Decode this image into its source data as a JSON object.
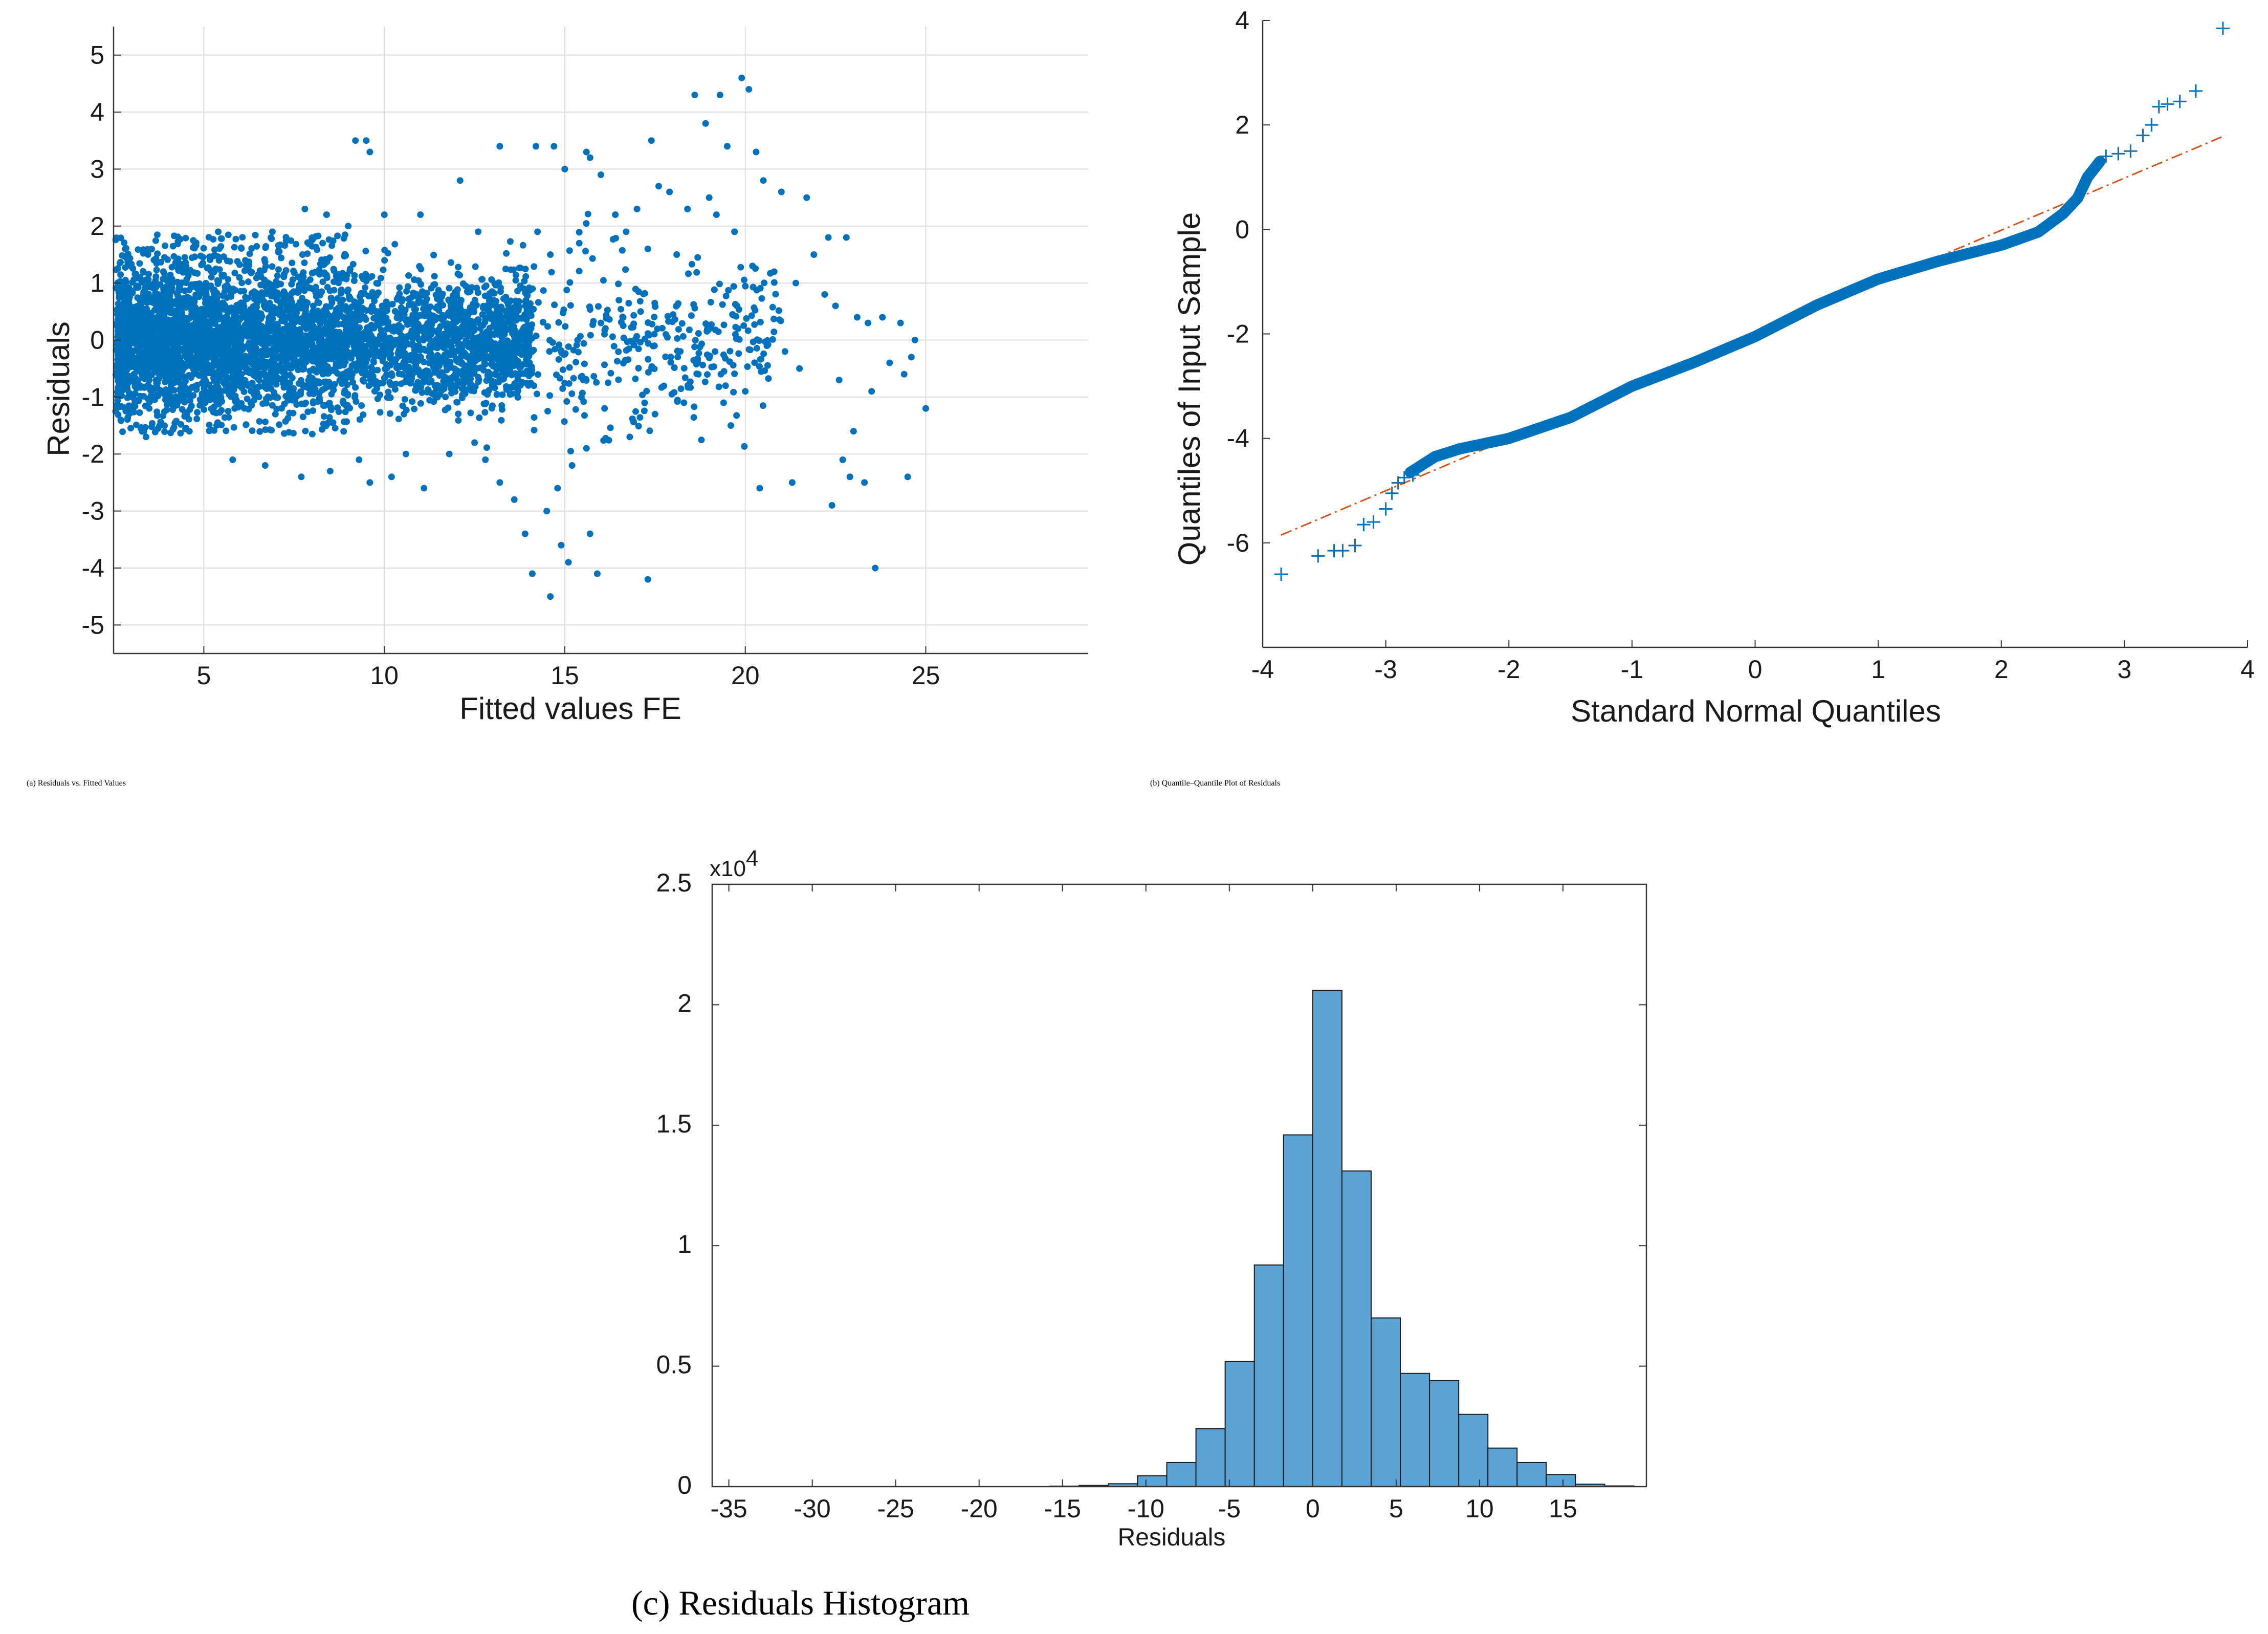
{
  "captions": {
    "a": {
      "label": "a",
      "text": "Residuals vs. Fitted Values"
    },
    "b": {
      "label": "b",
      "text": "Quantile–Quantile Plot of Residuals"
    },
    "c": {
      "text": "(c) Residuals Histogram"
    }
  },
  "chart_data": [
    {
      "id": "a",
      "type": "scatter",
      "title": "",
      "xlabel": "Fitted values FE",
      "ylabel": "Residuals",
      "xlim": [
        2.5,
        29.5
      ],
      "ylim": [
        -5.5,
        5.5
      ],
      "xticks": [
        5,
        10,
        15,
        20,
        25
      ],
      "yticks": [
        5,
        4,
        3,
        2,
        1,
        0,
        -1,
        -2,
        -3,
        -4,
        -5
      ],
      "xtick_labels": [
        "5",
        "10",
        "15",
        "20",
        "25"
      ],
      "ytick_labels": [
        "5",
        "4",
        "3",
        "2",
        "1",
        "0",
        "-1",
        "-2",
        "-3",
        "-4",
        "-5"
      ],
      "grid": true,
      "color": "#0072BD",
      "points": [
        [
          9.2,
          3.5
        ],
        [
          9.5,
          3.5
        ],
        [
          9.6,
          3.3
        ],
        [
          13.2,
          3.4
        ],
        [
          14.2,
          3.4
        ],
        [
          14.7,
          3.4
        ],
        [
          15.6,
          3.3
        ],
        [
          15.7,
          3.2
        ],
        [
          18.6,
          4.3
        ],
        [
          18.9,
          3.8
        ],
        [
          19.3,
          4.3
        ],
        [
          19.5,
          3.4
        ],
        [
          19.9,
          4.6
        ],
        [
          20.1,
          4.4
        ],
        [
          20.3,
          3.3
        ],
        [
          17.4,
          3.5
        ],
        [
          15.0,
          3.0
        ],
        [
          16.0,
          2.9
        ],
        [
          12.1,
          2.8
        ],
        [
          17.6,
          2.7
        ],
        [
          19.0,
          2.5
        ],
        [
          20.5,
          2.8
        ],
        [
          21.0,
          2.6
        ],
        [
          21.7,
          2.5
        ],
        [
          17.9,
          2.6
        ],
        [
          18.4,
          2.3
        ],
        [
          19.2,
          2.2
        ],
        [
          16.4,
          2.2
        ],
        [
          17.0,
          2.3
        ],
        [
          22.3,
          1.8
        ],
        [
          22.8,
          1.8
        ],
        [
          21.9,
          1.5
        ],
        [
          19.7,
          1.9
        ],
        [
          20.2,
          1.3
        ],
        [
          18.1,
          1.5
        ],
        [
          17.3,
          1.6
        ],
        [
          16.7,
          1.9
        ],
        [
          15.4,
          1.7
        ],
        [
          14.6,
          1.5
        ],
        [
          20.8,
          1.2
        ],
        [
          21.4,
          1.0
        ],
        [
          23.1,
          0.4
        ],
        [
          22.2,
          0.8
        ],
        [
          22.5,
          0.6
        ],
        [
          23.4,
          0.3
        ],
        [
          23.8,
          0.4
        ],
        [
          24.3,
          0.3
        ],
        [
          24.7,
          0.0
        ],
        [
          24.6,
          -0.3
        ],
        [
          24.4,
          -0.6
        ],
        [
          24.0,
          -0.4
        ],
        [
          25.0,
          -1.2
        ],
        [
          23.5,
          -0.9
        ],
        [
          22.6,
          -0.7
        ],
        [
          21.1,
          -0.2
        ],
        [
          21.5,
          -0.5
        ],
        [
          20.6,
          -0.1
        ],
        [
          19.8,
          0.2
        ],
        [
          20.0,
          -0.9
        ],
        [
          19.4,
          -1.1
        ],
        [
          18.7,
          -0.6
        ],
        [
          18.2,
          -0.2
        ],
        [
          17.8,
          0.1
        ],
        [
          17.1,
          0.5
        ],
        [
          16.5,
          0.7
        ],
        [
          16.0,
          0.3
        ],
        [
          23.0,
          -1.6
        ],
        [
          22.7,
          -2.1
        ],
        [
          22.4,
          -2.9
        ],
        [
          23.3,
          -2.5
        ],
        [
          22.9,
          -2.4
        ],
        [
          24.5,
          -2.4
        ],
        [
          21.3,
          -2.5
        ],
        [
          20.4,
          -2.6
        ],
        [
          19.6,
          -1.5
        ],
        [
          18.3,
          -1.1
        ],
        [
          17.5,
          -1.3
        ],
        [
          16.8,
          -1.7
        ],
        [
          16.1,
          -1.2
        ],
        [
          15.6,
          -1.9
        ],
        [
          15.2,
          -2.2
        ],
        [
          14.8,
          -2.6
        ],
        [
          14.5,
          -3.0
        ],
        [
          14.9,
          -3.6
        ],
        [
          15.1,
          -3.9
        ],
        [
          14.6,
          -4.5
        ],
        [
          13.9,
          -3.4
        ],
        [
          14.1,
          -4.1
        ],
        [
          15.7,
          -3.4
        ],
        [
          15.9,
          -4.1
        ],
        [
          17.3,
          -4.2
        ],
        [
          13.6,
          -2.8
        ],
        [
          13.2,
          -2.5
        ],
        [
          12.8,
          -2.1
        ],
        [
          12.5,
          -1.8
        ],
        [
          11.1,
          -2.6
        ],
        [
          10.2,
          -2.4
        ],
        [
          9.6,
          -2.5
        ],
        [
          23.6,
          -4.0
        ],
        [
          7.8,
          2.3
        ],
        [
          8.4,
          2.2
        ],
        [
          10.0,
          2.2
        ],
        [
          11.0,
          2.2
        ],
        [
          12.6,
          1.9
        ],
        [
          9.0,
          2.0
        ],
        [
          6.9,
          1.9
        ],
        [
          5.4,
          1.9
        ],
        [
          2.7,
          -1.4
        ],
        [
          3.4,
          -1.7
        ],
        [
          4.6,
          -1.6
        ],
        [
          5.8,
          -2.1
        ],
        [
          6.7,
          -2.2
        ],
        [
          7.7,
          -2.4
        ],
        [
          8.5,
          -2.3
        ],
        [
          9.3,
          -2.1
        ],
        [
          10.6,
          -2.0
        ],
        [
          11.8,
          -2.0
        ]
      ]
    },
    {
      "id": "b",
      "type": "line",
      "title": "",
      "xlabel": "Standard Normal Quantiles",
      "ylabel": "Quantiles of Input Sample",
      "xlim": [
        -4,
        4
      ],
      "ylim": [
        -8,
        4
      ],
      "xticks": [
        -4,
        -3,
        -2,
        -1,
        0,
        1,
        2,
        3,
        4
      ],
      "yticks": [
        4,
        2,
        0,
        -2,
        -4,
        -6
      ],
      "xtick_labels": [
        "-4",
        "-3",
        "-2",
        "-1",
        "0",
        "1",
        "2",
        "3",
        "4"
      ],
      "ytick_labels": [
        "4",
        "2",
        "0",
        "-2",
        "-4",
        "-6"
      ],
      "grid": false,
      "color": "#0072BD",
      "reference_color": "#D95319",
      "reference_line": [
        [
          -3.85,
          -5.85
        ],
        [
          3.8,
          1.78
        ]
      ],
      "sample_curve": [
        [
          -2.8,
          -4.65
        ],
        [
          -2.6,
          -4.35
        ],
        [
          -2.4,
          -4.2
        ],
        [
          -2.0,
          -4.0
        ],
        [
          -1.5,
          -3.6
        ],
        [
          -1.0,
          -3.0
        ],
        [
          -0.5,
          -2.55
        ],
        [
          0.0,
          -2.05
        ],
        [
          0.5,
          -1.45
        ],
        [
          1.0,
          -0.95
        ],
        [
          1.5,
          -0.6
        ],
        [
          2.0,
          -0.3
        ],
        [
          2.3,
          -0.05
        ],
        [
          2.5,
          0.3
        ],
        [
          2.62,
          0.6
        ],
        [
          2.7,
          1.0
        ],
        [
          2.8,
          1.3
        ]
      ],
      "outliers": [
        [
          -3.85,
          -6.6
        ],
        [
          -3.55,
          -6.25
        ],
        [
          -3.42,
          -6.15
        ],
        [
          -3.35,
          -6.15
        ],
        [
          -3.25,
          -6.05
        ],
        [
          -3.18,
          -5.65
        ],
        [
          -3.1,
          -5.6
        ],
        [
          -3.0,
          -5.35
        ],
        [
          -2.95,
          -5.05
        ],
        [
          -2.9,
          -4.85
        ],
        [
          -2.85,
          -4.75
        ],
        [
          -2.78,
          -4.7
        ],
        [
          2.85,
          1.4
        ],
        [
          2.95,
          1.45
        ],
        [
          3.05,
          1.5
        ],
        [
          3.15,
          1.8
        ],
        [
          3.22,
          2.0
        ],
        [
          3.28,
          2.35
        ],
        [
          3.35,
          2.4
        ],
        [
          3.45,
          2.45
        ],
        [
          3.58,
          2.65
        ],
        [
          3.8,
          3.85
        ]
      ]
    },
    {
      "id": "c",
      "type": "bar",
      "title": "",
      "xlabel": "Residuals",
      "ylabel": "",
      "xlim": [
        -36,
        20
      ],
      "ylim": [
        0,
        2.5
      ],
      "multiplier": "x10",
      "multiplier_exp": "4",
      "xticks": [
        -35,
        -30,
        -25,
        -20,
        -15,
        -10,
        -5,
        0,
        5,
        10,
        15
      ],
      "yticks": [
        0,
        0.5,
        1,
        1.5,
        2,
        2.5
      ],
      "xtick_labels": [
        "-35",
        "-30",
        "-25",
        "-20",
        "-15",
        "-10",
        "-5",
        "0",
        "5",
        "10",
        "15"
      ],
      "ytick_labels": [
        "0",
        "0.5",
        "1",
        "1.5",
        "2",
        "2.5"
      ],
      "grid": false,
      "color": "#5BA3D5",
      "bin_width": 1.75,
      "bins": [
        {
          "x0": -15.75,
          "v": 0.002
        },
        {
          "x0": -14.0,
          "v": 0.005
        },
        {
          "x0": -12.25,
          "v": 0.012
        },
        {
          "x0": -10.5,
          "v": 0.045
        },
        {
          "x0": -8.75,
          "v": 0.1
        },
        {
          "x0": -7.0,
          "v": 0.24
        },
        {
          "x0": -5.25,
          "v": 0.52
        },
        {
          "x0": -3.5,
          "v": 0.92
        },
        {
          "x0": -1.75,
          "v": 1.46
        },
        {
          "x0": 0.0,
          "v": 2.06
        },
        {
          "x0": 1.75,
          "v": 1.31
        },
        {
          "x0": 3.5,
          "v": 0.7
        },
        {
          "x0": 5.25,
          "v": 0.47
        },
        {
          "x0": 7.0,
          "v": 0.44
        },
        {
          "x0": 8.75,
          "v": 0.3
        },
        {
          "x0": 10.5,
          "v": 0.16
        },
        {
          "x0": 12.25,
          "v": 0.1
        },
        {
          "x0": 14.0,
          "v": 0.05
        },
        {
          "x0": 15.75,
          "v": 0.01
        },
        {
          "x0": 17.5,
          "v": 0.003
        }
      ]
    }
  ]
}
